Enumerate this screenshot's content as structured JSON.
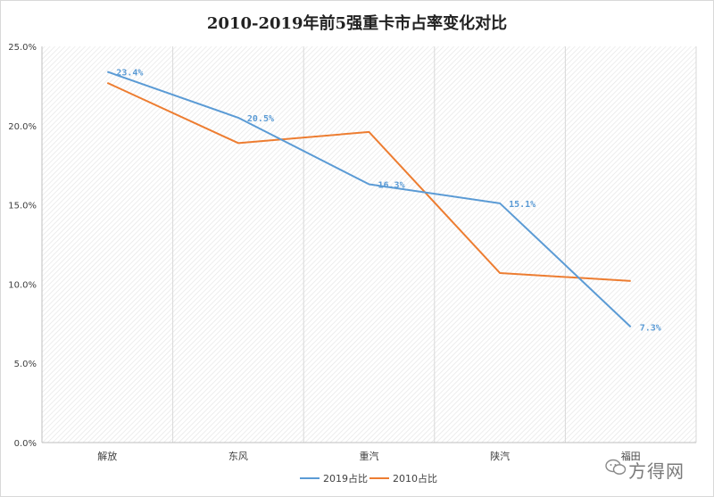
{
  "chart_data": {
    "type": "line",
    "title": "2010-2019年前5强重卡市占率变化对比",
    "xlabel": "",
    "ylabel": "",
    "categories": [
      "解放",
      "东风",
      "重汽",
      "陕汽",
      "福田"
    ],
    "y_ticks": [
      "0.0%",
      "5.0%",
      "10.0%",
      "15.0%",
      "20.0%",
      "25.0%"
    ],
    "ylim": [
      0,
      25
    ],
    "grid": "vertical",
    "legend_position": "bottom",
    "series": [
      {
        "name": "2019占比",
        "color": "#5b9bd5",
        "values": [
          23.4,
          20.5,
          16.3,
          15.1,
          7.3
        ],
        "labels": [
          "23.4%",
          "20.5%",
          "16.3%",
          "15.1%",
          "7.3%"
        ]
      },
      {
        "name": "2010占比",
        "color": "#ed7d31",
        "values": [
          22.7,
          18.9,
          19.6,
          10.7,
          10.2
        ]
      }
    ]
  },
  "watermark": {
    "text": "方得网",
    "icon": "wechat-icon"
  }
}
